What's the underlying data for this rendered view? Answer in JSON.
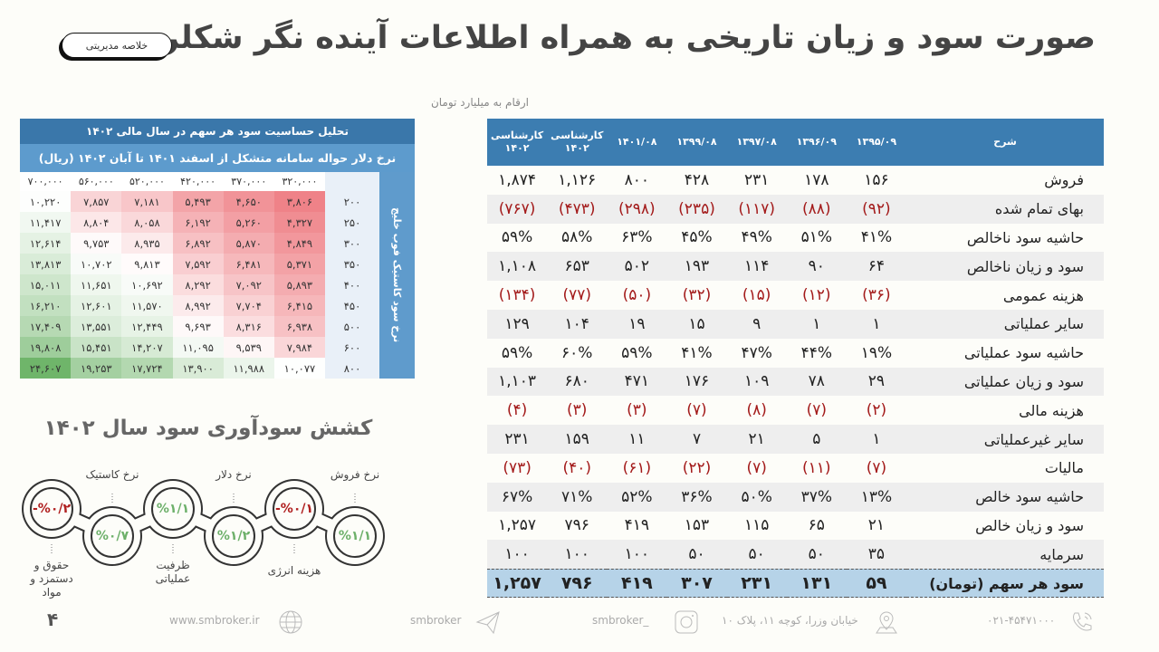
{
  "header": {
    "title": "صورت سود و زیان تاریخی به همراه اطلاعات آینده نگر شکلر",
    "summary_button": "خلاصه مدیریتی",
    "unit_note": "ارقام به میلیارد تومان"
  },
  "income_table": {
    "columns": [
      "شرح",
      "۱۳۹۵/۰۹",
      "۱۳۹۶/۰۹",
      "۱۳۹۷/۰۸",
      "۱۳۹۹/۰۸",
      "۱۴۰۱/۰۸",
      "کارشناسی ۱۴۰۲",
      "کارشناسی ۱۴۰۲"
    ],
    "rows": [
      {
        "label": "فروش",
        "values": [
          "۱۵۶",
          "۱۷۸",
          "۲۳۱",
          "۴۲۸",
          "۸۰۰",
          "۱,۱۲۶",
          "۱,۸۷۴"
        ]
      },
      {
        "label": "بهای تمام شده",
        "values": [
          "(۹۲)",
          "(۸۸)",
          "(۱۱۷)",
          "(۲۳۵)",
          "(۲۹۸)",
          "(۴۷۳)",
          "(۷۶۷)"
        ]
      },
      {
        "label": "حاشیه سود ناخالص",
        "values": [
          "۴۱%",
          "۵۱%",
          "۴۹%",
          "۴۵%",
          "۶۳%",
          "۵۸%",
          "۵۹%"
        ]
      },
      {
        "label": "سود و زیان ناخالص",
        "values": [
          "۶۴",
          "۹۰",
          "۱۱۴",
          "۱۹۳",
          "۵۰۲",
          "۶۵۳",
          "۱,۱۰۸"
        ]
      },
      {
        "label": "هزینه عمومی",
        "values": [
          "(۳۶)",
          "(۱۲)",
          "(۱۵)",
          "(۳۲)",
          "(۵۰)",
          "(۷۷)",
          "(۱۳۴)"
        ]
      },
      {
        "label": "سایر  عملیاتی",
        "values": [
          "۱",
          "۱",
          "۹",
          "۱۵",
          "۱۹",
          "۱۰۴",
          "۱۲۹"
        ]
      },
      {
        "label": "حاشیه سود عملیاتی",
        "values": [
          "۱۹%",
          "۴۴%",
          "۴۷%",
          "۴۱%",
          "۵۹%",
          "۶۰%",
          "۵۹%"
        ]
      },
      {
        "label": "سود و زیان عملیاتی",
        "values": [
          "۲۹",
          "۷۸",
          "۱۰۹",
          "۱۷۶",
          "۴۷۱",
          "۶۸۰",
          "۱,۱۰۳"
        ]
      },
      {
        "label": "هزینه مالی",
        "values": [
          "(۲)",
          "(۷)",
          "(۸)",
          "(۷)",
          "(۳)",
          "(۳)",
          "(۴)"
        ]
      },
      {
        "label": "سایر غیرعملیاتی",
        "values": [
          "۱",
          "۵",
          "۲۱",
          "۷",
          "۱۱",
          "۱۵۹",
          "۲۳۱"
        ]
      },
      {
        "label": "مالیات",
        "values": [
          "(۷)",
          "(۱۱)",
          "(۷)",
          "(۲۲)",
          "(۶۱)",
          "(۴۰)",
          "(۷۳)"
        ]
      },
      {
        "label": "حاشیه سود خالص",
        "values": [
          "۱۳%",
          "۳۷%",
          "۵۰%",
          "۳۶%",
          "۵۲%",
          "۷۱%",
          "۶۷%"
        ]
      },
      {
        "label": "سود و زیان خالص",
        "values": [
          "۲۱",
          "۶۵",
          "۱۱۵",
          "۱۵۳",
          "۴۱۹",
          "۷۹۶",
          "۱,۲۵۷"
        ]
      },
      {
        "label": "سرمایه",
        "values": [
          "۳۵",
          "۵۰",
          "۵۰",
          "۵۰",
          "۱۰۰",
          "۱۰۰",
          "۱۰۰"
        ]
      },
      {
        "label": "سود هر سهم (تومان)",
        "values": [
          "۵۹",
          "۱۳۱",
          "۲۳۱",
          "۳۰۷",
          "۴۱۹",
          "۷۹۶",
          "۱,۲۵۷"
        ],
        "highlight": true
      }
    ]
  },
  "sensitivity": {
    "title": "تحلیل حساسیت سود هر سهم در سال مالی ۱۴۰۲",
    "subtitle": "نرخ دلار حواله سامانه متشکل از اسفند ۱۴۰۱ تا آبان ۱۴۰۲ (ریال)",
    "row_axis_label": "نرخ سود کاستیک فوب خلیج",
    "columns": [
      "۳۲۰,۰۰۰",
      "۳۷۰,۰۰۰",
      "۴۲۰,۰۰۰",
      "۵۲۰,۰۰۰",
      "۵۶۰,۰۰۰",
      "۷۰۰,۰۰۰"
    ],
    "rows": [
      {
        "label": "۲۰۰",
        "values": [
          "۳,۸۰۶",
          "۴,۶۵۰",
          "۵,۴۹۳",
          "۷,۱۸۱",
          "۷,۸۵۷",
          "۱۰,۲۲۰"
        ]
      },
      {
        "label": "۲۵۰",
        "values": [
          "۴,۳۲۷",
          "۵,۲۶۰",
          "۶,۱۹۲",
          "۸,۰۵۸",
          "۸,۸۰۴",
          "۱۱,۴۱۷"
        ]
      },
      {
        "label": "۳۰۰",
        "values": [
          "۴,۸۴۹",
          "۵,۸۷۰",
          "۶,۸۹۲",
          "۸,۹۳۵",
          "۹,۷۵۳",
          "۱۲,۶۱۴"
        ]
      },
      {
        "label": "۳۵۰",
        "values": [
          "۵,۳۷۱",
          "۶,۴۸۱",
          "۷,۵۹۲",
          "۹,۸۱۳",
          "۱۰,۷۰۲",
          "۱۳,۸۱۳"
        ]
      },
      {
        "label": "۴۰۰",
        "values": [
          "۵,۸۹۳",
          "۷,۰۹۲",
          "۸,۲۹۲",
          "۱۰,۶۹۲",
          "۱۱,۶۵۱",
          "۱۵,۰۱۱"
        ]
      },
      {
        "label": "۴۵۰",
        "values": [
          "۶,۴۱۵",
          "۷,۷۰۴",
          "۸,۹۹۲",
          "۱۱,۵۷۰",
          "۱۲,۶۰۱",
          "۱۶,۲۱۰"
        ]
      },
      {
        "label": "۵۰۰",
        "values": [
          "۶,۹۳۸",
          "۸,۳۱۶",
          "۹,۶۹۳",
          "۱۲,۴۴۹",
          "۱۳,۵۵۱",
          "۱۷,۴۰۹"
        ]
      },
      {
        "label": "۶۰۰",
        "values": [
          "۷,۹۸۴",
          "۹,۵۳۹",
          "۱۱,۰۹۵",
          "۱۴,۲۰۷",
          "۱۵,۴۵۱",
          "۱۹,۸۰۸"
        ]
      },
      {
        "label": "۸۰۰",
        "values": [
          "۱۰,۰۷۷",
          "۱۱,۹۸۸",
          "۱۳,۹۰۰",
          "۱۷,۷۲۴",
          "۱۹,۲۵۳",
          "۲۴,۶۰۷"
        ]
      }
    ],
    "colors": {
      "low": "#ef8288",
      "mid": "#ffffff",
      "high": "#6fb56a"
    }
  },
  "elasticity": {
    "title": "کشش سودآوری سود سال ۱۴۰۲",
    "items": [
      {
        "label": "حقوق و دستمزد و مواد",
        "value": "-%۰/۲",
        "sign": "neg"
      },
      {
        "label": "نرخ کاستیک",
        "value": "%۰/۷",
        "sign": "pos"
      },
      {
        "label": "ظرفیت عملیاتی",
        "value": "%۱/۱",
        "sign": "pos"
      },
      {
        "label": "نرخ دلار",
        "value": "%۱/۲",
        "sign": "pos"
      },
      {
        "label": "هزینه انرژی",
        "value": "-%۰/۱",
        "sign": "neg"
      },
      {
        "label": "نرخ فروش",
        "value": "%۱/۱",
        "sign": "pos"
      }
    ]
  },
  "footer": {
    "page": "۴",
    "website": "www.smbroker.ir",
    "telegram": "smbroker",
    "instagram": "smbroker_",
    "address": "خیابان وزرا، کوچه ۱۱، پلاک ۱۰",
    "phone": "۰۲۱-۴۵۴۷۱۰۰۰"
  }
}
